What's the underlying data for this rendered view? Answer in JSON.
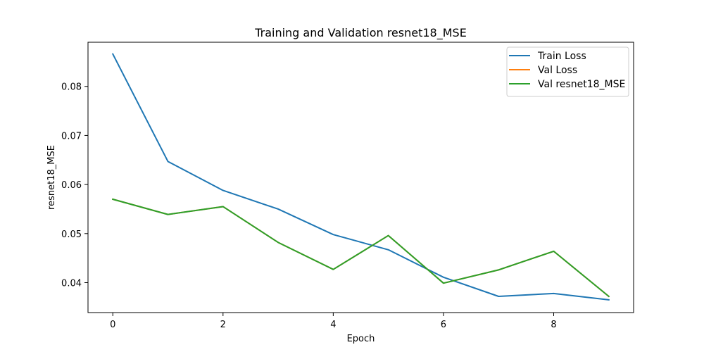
{
  "chart_data": {
    "type": "line",
    "title": "Training and Validation resnet18_MSE",
    "xlabel": "Epoch",
    "ylabel": "resnet18_MSE",
    "xlim": [
      -0.45,
      9.45
    ],
    "ylim": [
      0.0339,
      0.089
    ],
    "x_ticks": [
      0,
      2,
      4,
      6,
      8
    ],
    "x_tick_labels": [
      "0",
      "2",
      "4",
      "6",
      "8"
    ],
    "y_ticks": [
      0.04,
      0.05,
      0.06,
      0.07,
      0.08
    ],
    "y_tick_labels": [
      "0.04",
      "0.05",
      "0.06",
      "0.07",
      "0.08"
    ],
    "grid": false,
    "legend_position": "top-right",
    "x": [
      0,
      1,
      2,
      3,
      4,
      5,
      6,
      7,
      8,
      9
    ],
    "series": [
      {
        "name": "Train Loss",
        "color": "#1f77b4",
        "values": [
          0.0866,
          0.0647,
          0.0588,
          0.055,
          0.0498,
          0.0467,
          0.0411,
          0.0372,
          0.0378,
          0.0365
        ]
      },
      {
        "name": "Val Loss",
        "color": "#ff7f0e",
        "values": [
          0.057,
          0.0539,
          0.0555,
          0.0482,
          0.0427,
          0.0496,
          0.0399,
          0.0426,
          0.0464,
          0.0372
        ]
      },
      {
        "name": "Val resnet18_MSE",
        "color": "#2ca02c",
        "values": [
          0.057,
          0.0539,
          0.0555,
          0.0482,
          0.0427,
          0.0496,
          0.0399,
          0.0426,
          0.0464,
          0.0372
        ]
      }
    ]
  }
}
